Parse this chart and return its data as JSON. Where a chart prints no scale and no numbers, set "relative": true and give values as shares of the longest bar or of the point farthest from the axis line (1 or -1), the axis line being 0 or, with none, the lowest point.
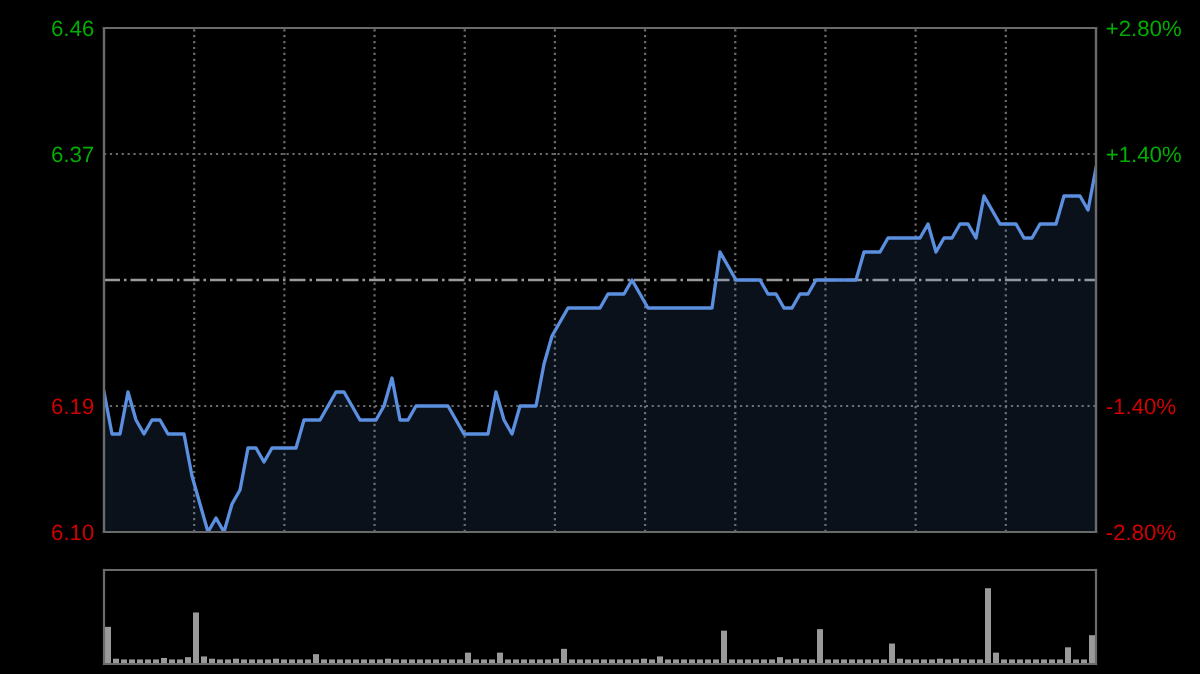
{
  "chart_data": [
    {
      "type": "area",
      "categories": [
        null,
        null,
        null,
        null,
        null,
        null,
        null,
        null,
        null,
        null,
        null,
        null,
        null,
        null,
        null,
        null,
        null,
        null,
        null,
        null,
        null,
        null,
        null,
        null,
        null,
        null,
        null,
        null,
        null,
        null,
        null,
        null,
        null,
        null,
        null,
        null,
        null,
        null,
        null,
        null,
        null,
        null,
        null,
        null,
        null,
        null,
        null,
        null,
        null,
        null,
        null,
        null,
        null,
        null,
        null,
        null,
        null,
        null,
        null,
        null,
        null,
        null,
        null,
        null,
        null,
        null,
        null,
        null,
        null,
        null,
        null,
        null,
        null,
        null,
        null,
        null,
        null,
        null,
        null,
        null,
        null,
        null,
        null,
        null,
        null,
        null,
        null,
        null,
        null,
        null,
        null,
        null,
        null,
        null,
        null,
        null,
        null,
        null,
        null,
        null,
        null,
        null,
        null,
        null,
        null,
        null,
        null,
        null,
        null,
        null,
        null,
        null,
        null,
        null,
        null,
        null,
        null,
        null,
        null,
        null,
        null,
        null,
        null,
        null,
        null
      ],
      "ylim": [
        6.1,
        6.46
      ],
      "yticks": [
        {
          "value": 6.1,
          "label": "6.10"
        },
        6.19,
        6.37,
        6.46
      ],
      "y2lim": [
        -2.8,
        2.8
      ],
      "y2ticks": [
        {
          "value": -2.8,
          "label": "-2.80%"
        },
        {
          "value": -1.4,
          "label": "-1.40%"
        },
        {
          "value": 1.4,
          "label": "+1.40%"
        },
        {
          "value": 2.8,
          "label": "+2.80%"
        }
      ],
      "grid": true,
      "tick_labels": "y",
      "line_style": "solid",
      "marker": "none",
      "ref_lines": [
        {
          "axis": "y",
          "value": 6.28,
          "label": null,
          "color": "#9a9a9a",
          "line_style": "dashdot"
        }
      ],
      "series": [
        {
          "color": "#5b8fe0",
          "values": [
            6.2,
            6.17,
            6.17,
            6.2,
            6.18,
            6.17,
            6.18,
            6.18,
            6.17,
            6.17,
            6.17,
            6.14,
            6.12,
            6.1,
            6.11,
            6.1,
            6.12,
            6.13,
            6.16,
            6.16,
            6.15,
            6.16,
            6.16,
            6.16,
            6.16,
            6.18,
            6.18,
            6.18,
            6.19,
            6.2,
            6.2,
            6.19,
            6.18,
            6.18,
            6.18,
            6.19,
            6.21,
            6.18,
            6.18,
            6.19,
            6.19,
            6.19,
            6.19,
            6.19,
            6.18,
            6.17,
            6.17,
            6.17,
            6.17,
            6.2,
            6.18,
            6.17,
            6.19,
            6.19,
            6.19,
            6.22,
            6.24,
            6.25,
            6.26,
            6.26,
            6.26,
            6.26,
            6.26,
            6.27,
            6.27,
            6.27,
            6.28,
            6.27,
            6.26,
            6.26,
            6.26,
            6.26,
            6.26,
            6.26,
            6.26,
            6.26,
            6.26,
            6.3,
            6.29,
            6.28,
            6.28,
            6.28,
            6.28,
            6.27,
            6.27,
            6.26,
            6.26,
            6.27,
            6.27,
            6.28,
            6.28,
            6.28,
            6.28,
            6.28,
            6.28,
            6.3,
            6.3,
            6.3,
            6.31,
            6.31,
            6.31,
            6.31,
            6.31,
            6.32,
            6.3,
            6.31,
            6.31,
            6.32,
            6.32,
            6.31,
            6.34,
            6.33,
            6.32,
            6.32,
            6.32,
            6.31,
            6.31,
            6.32,
            6.32,
            6.32,
            6.34,
            6.34,
            6.34,
            6.33,
            6.36
          ]
        }
      ]
    },
    {
      "type": "bar",
      "relative": true,
      "categories": [
        null,
        null,
        null,
        null,
        null,
        null,
        null,
        null,
        null,
        null,
        null,
        null,
        null,
        null,
        null,
        null,
        null,
        null,
        null,
        null,
        null,
        null,
        null,
        null,
        null,
        null,
        null,
        null,
        null,
        null,
        null,
        null,
        null,
        null,
        null,
        null,
        null,
        null,
        null,
        null,
        null,
        null,
        null,
        null,
        null,
        null,
        null,
        null,
        null,
        null,
        null,
        null,
        null,
        null,
        null,
        null,
        null,
        null,
        null,
        null,
        null,
        null,
        null,
        null,
        null,
        null,
        null,
        null,
        null,
        null,
        null,
        null,
        null,
        null,
        null,
        null,
        null,
        null,
        null,
        null,
        null,
        null,
        null,
        null,
        null,
        null,
        null,
        null,
        null,
        null,
        null,
        null,
        null,
        null,
        null,
        null,
        null,
        null,
        null,
        null,
        null,
        null,
        null,
        null,
        null,
        null,
        null,
        null,
        null,
        null,
        null,
        null,
        null,
        null,
        null,
        null,
        null,
        null,
        null,
        null,
        null,
        null,
        null,
        null
      ],
      "series": [
        {
          "color": "#9a9a9a",
          "values": [
            0.49,
            0.07,
            0.06,
            0.06,
            0.06,
            0.06,
            0.06,
            0.08,
            0.06,
            0.06,
            0.09,
            0.68,
            0.1,
            0.07,
            0.06,
            0.06,
            0.07,
            0.06,
            0.06,
            0.06,
            0.06,
            0.07,
            0.06,
            0.06,
            0.06,
            0.06,
            0.13,
            0.06,
            0.06,
            0.06,
            0.06,
            0.06,
            0.06,
            0.06,
            0.06,
            0.07,
            0.06,
            0.06,
            0.06,
            0.06,
            0.06,
            0.06,
            0.06,
            0.06,
            0.06,
            0.15,
            0.06,
            0.06,
            0.06,
            0.15,
            0.06,
            0.06,
            0.06,
            0.06,
            0.06,
            0.06,
            0.07,
            0.2,
            0.06,
            0.06,
            0.06,
            0.06,
            0.06,
            0.06,
            0.06,
            0.06,
            0.06,
            0.07,
            0.06,
            0.1,
            0.06,
            0.06,
            0.06,
            0.06,
            0.06,
            0.06,
            0.06,
            0.44,
            0.06,
            0.06,
            0.06,
            0.06,
            0.06,
            0.06,
            0.09,
            0.06,
            0.07,
            0.06,
            0.06,
            0.46,
            0.06,
            0.06,
            0.06,
            0.06,
            0.06,
            0.06,
            0.06,
            0.06,
            0.27,
            0.07,
            0.06,
            0.06,
            0.06,
            0.06,
            0.07,
            0.06,
            0.07,
            0.06,
            0.06,
            0.06,
            1.0,
            0.15,
            0.06,
            0.06,
            0.06,
            0.06,
            0.06,
            0.06,
            0.06,
            0.06,
            0.22,
            0.06,
            0.06,
            0.38
          ]
        }
      ]
    }
  ]
}
